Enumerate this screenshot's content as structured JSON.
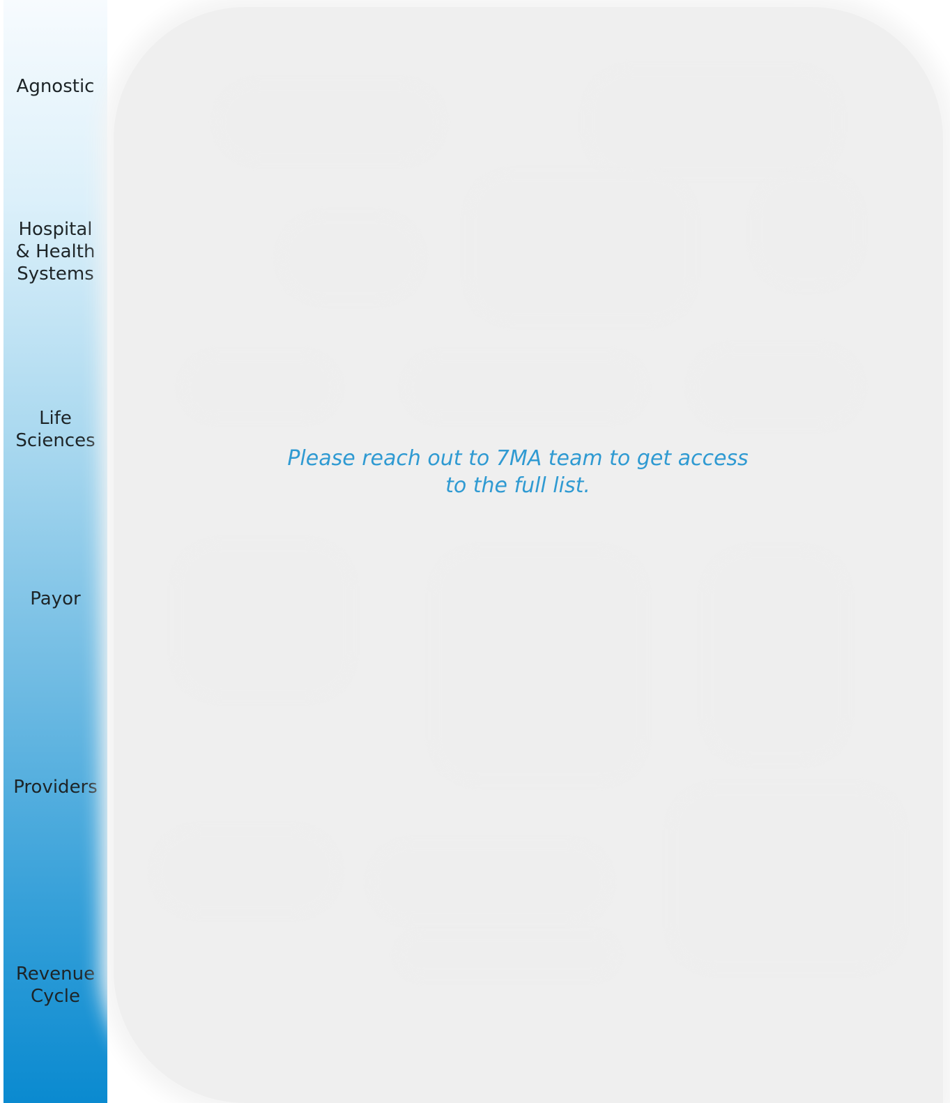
{
  "sidebar": {
    "categories": [
      {
        "label": "Agnostic"
      },
      {
        "label": "Hospital\n& Health\nSystems"
      },
      {
        "label": "Life\nSciences"
      },
      {
        "label": "Payor"
      },
      {
        "label": "Providers"
      },
      {
        "label": "Revenue\nCycle"
      }
    ]
  },
  "content": {
    "access_message": "Please reach out to 7MA team to get access to the full list."
  },
  "colors": {
    "sidebar_top": "#f7fbfe",
    "sidebar_bottom": "#0a8ad0",
    "message_text": "#2f9ad2",
    "panel_background": "#efefef"
  }
}
